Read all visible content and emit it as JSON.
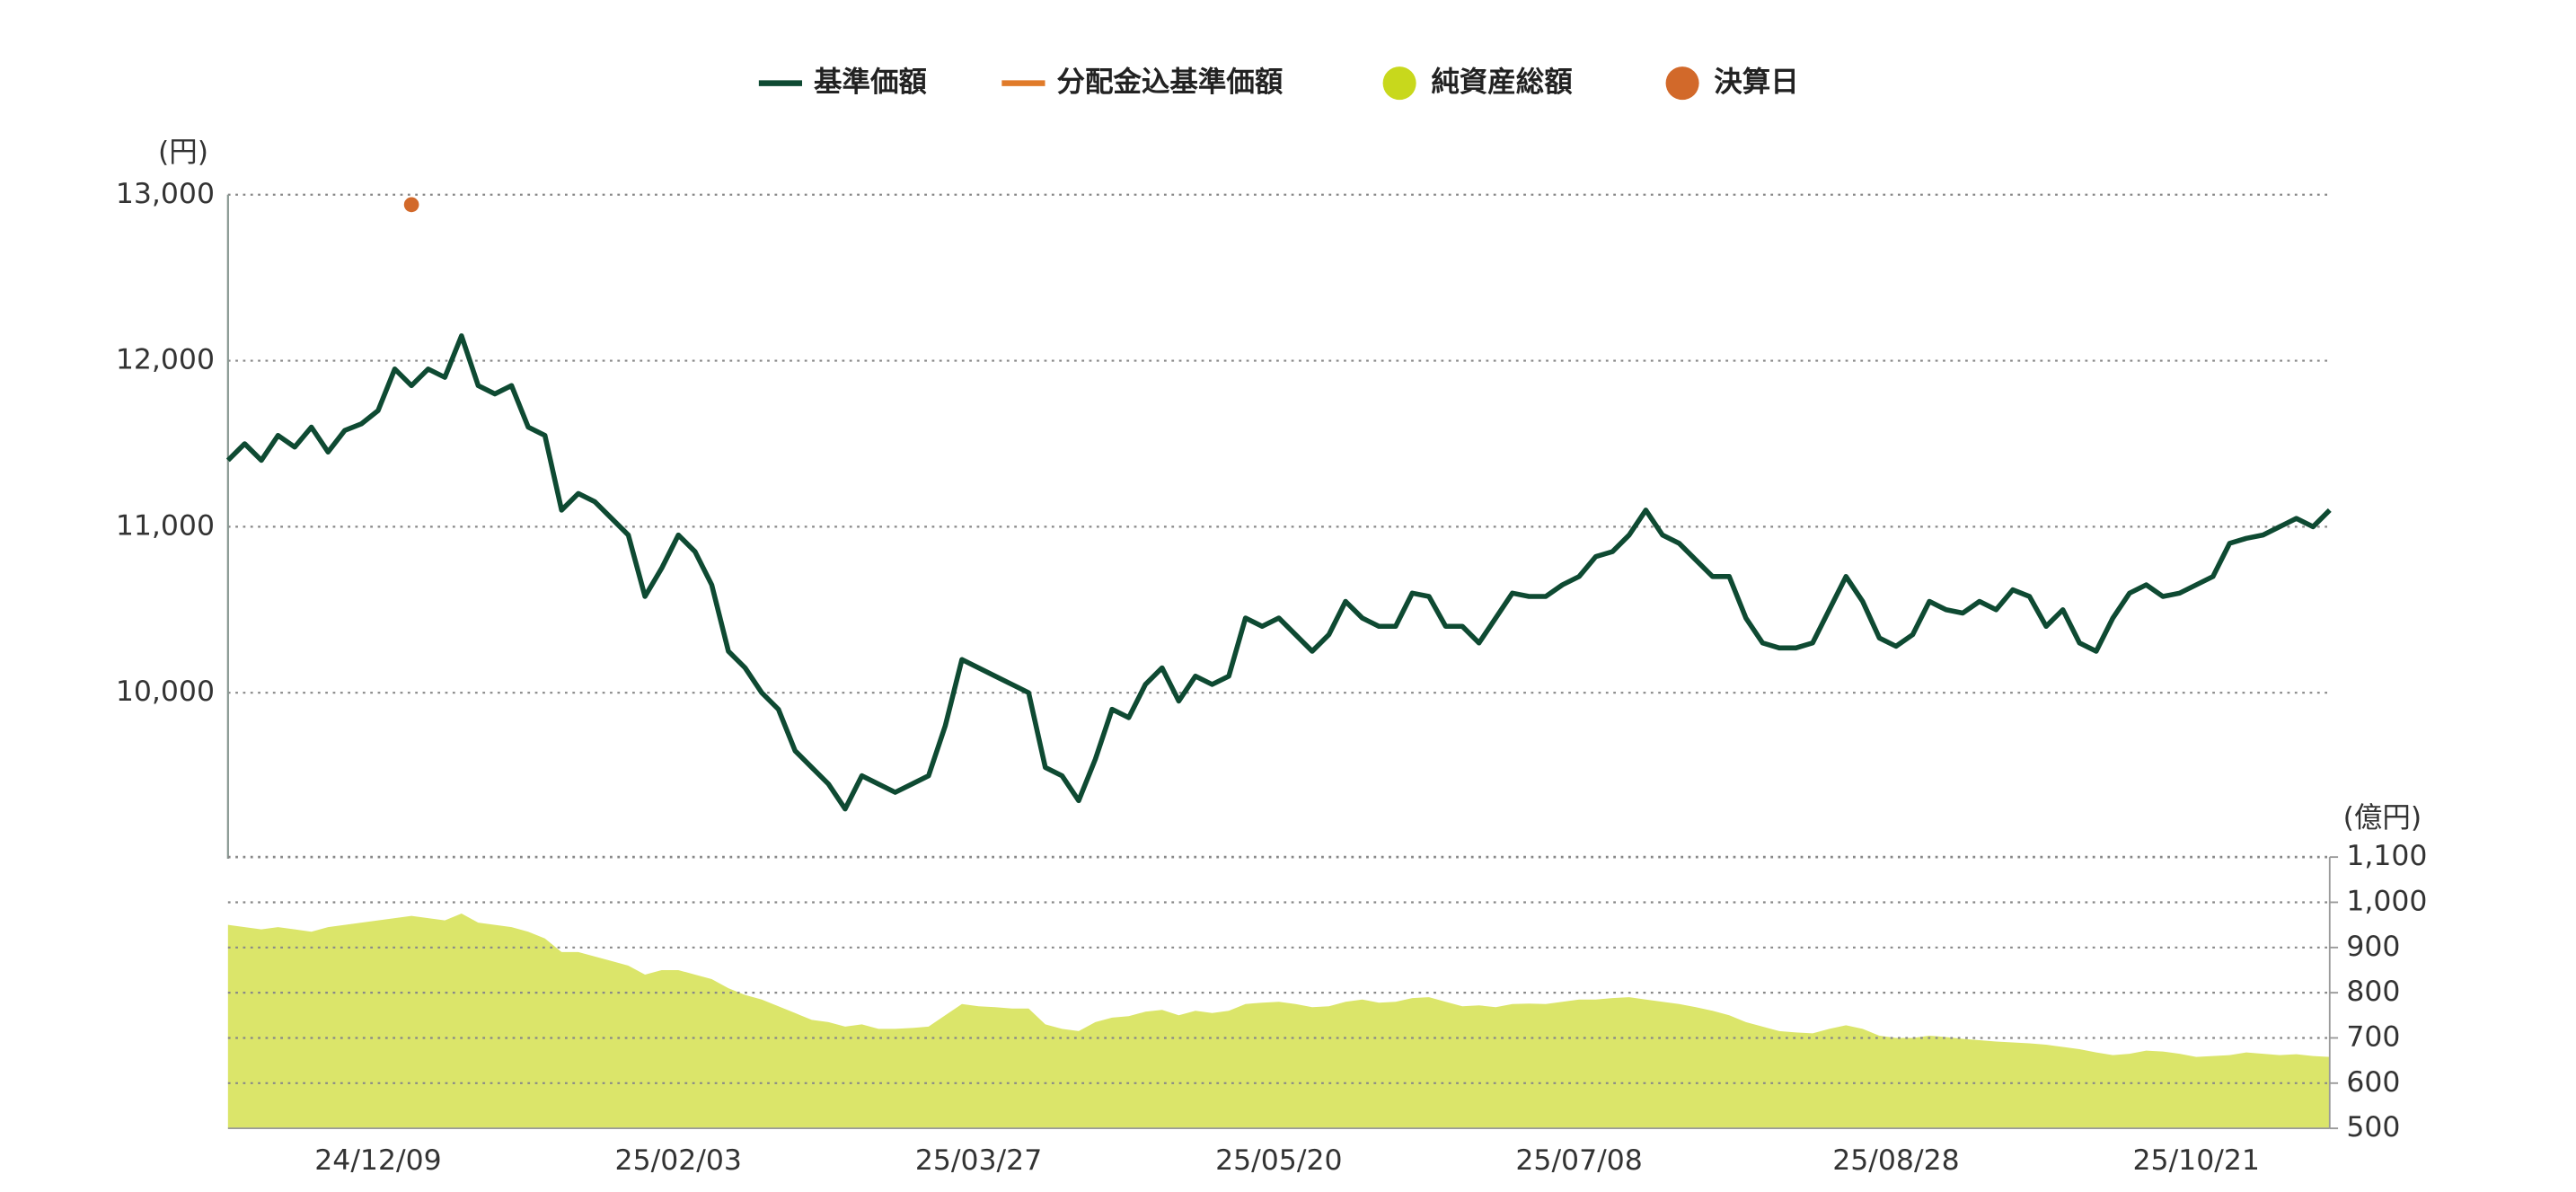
{
  "chart_data": {
    "type": "line",
    "y_unit": "(円)",
    "y2_unit": "(億円)",
    "categories": [
      null,
      null,
      null,
      null,
      null,
      null,
      null,
      null,
      null,
      "24/12/09",
      null,
      null,
      null,
      null,
      null,
      null,
      null,
      null,
      null,
      null,
      null,
      null,
      null,
      null,
      null,
      null,
      null,
      "25/02/03",
      null,
      null,
      null,
      null,
      null,
      null,
      null,
      null,
      null,
      null,
      null,
      null,
      null,
      null,
      null,
      null,
      null,
      "25/03/27",
      null,
      null,
      null,
      null,
      null,
      null,
      null,
      null,
      null,
      null,
      null,
      null,
      null,
      null,
      null,
      null,
      null,
      "25/05/20",
      null,
      null,
      null,
      null,
      null,
      null,
      null,
      null,
      null,
      null,
      null,
      null,
      null,
      null,
      null,
      null,
      null,
      "25/07/08",
      null,
      null,
      null,
      null,
      null,
      null,
      null,
      null,
      null,
      null,
      null,
      null,
      null,
      null,
      null,
      null,
      null,
      null,
      "25/08/28",
      null,
      null,
      null,
      null,
      null,
      null,
      null,
      null,
      null,
      null,
      null,
      null,
      null,
      null,
      null,
      null,
      null,
      "25/10/21",
      null,
      null,
      null,
      null,
      null,
      null,
      null,
      null
    ],
    "series": [
      {
        "name": "基準価額",
        "type": "line",
        "color": "#0e4a32",
        "values": [
          11400,
          11500,
          11400,
          11550,
          11480,
          11600,
          11450,
          11580,
          11620,
          11700,
          11950,
          11850,
          11950,
          11900,
          12150,
          11850,
          11800,
          11850,
          11600,
          11550,
          11100,
          11200,
          11150,
          11050,
          10950,
          10580,
          10750,
          10950,
          10850,
          10650,
          10250,
          10150,
          10000,
          9900,
          9650,
          9550,
          9450,
          9300,
          9500,
          9450,
          9400,
          9450,
          9500,
          9800,
          10200,
          10150,
          10100,
          10050,
          10000,
          9550,
          9500,
          9350,
          9600,
          9900,
          9850,
          10050,
          10150,
          9950,
          10100,
          10050,
          10100,
          10450,
          10400,
          10450,
          10350,
          10250,
          10350,
          10550,
          10450,
          10400,
          10400,
          10600,
          10580,
          10400,
          10400,
          10300,
          10450,
          10600,
          10580,
          10580,
          10650,
          10700,
          10820,
          10850,
          10950,
          11100,
          10950,
          10900,
          10800,
          10700,
          10700,
          10450,
          10300,
          10270,
          10270,
          10300,
          10500,
          10700,
          10550,
          10330,
          10280,
          10350,
          10550,
          10500,
          10480,
          10550,
          10500,
          10620,
          10580,
          10400,
          10500,
          10300,
          10250,
          10450,
          10600,
          10650,
          10580,
          10600,
          10650,
          10700,
          10900,
          10930,
          10950,
          11000,
          11050,
          11000,
          11100
        ]
      },
      {
        "name": "分配金込基準価額",
        "type": "line",
        "color": "#e07b2a"
      },
      {
        "name": "純資産総額",
        "type": "area",
        "axis": "y2",
        "color": "#dbe56a",
        "legend_color": "#c8d81c",
        "values": [
          950,
          945,
          940,
          945,
          940,
          935,
          945,
          950,
          955,
          960,
          965,
          970,
          965,
          960,
          975,
          955,
          950,
          945,
          935,
          920,
          890,
          890,
          880,
          870,
          860,
          840,
          850,
          850,
          840,
          830,
          810,
          795,
          785,
          770,
          755,
          740,
          735,
          725,
          730,
          720,
          720,
          722,
          725,
          750,
          775,
          770,
          768,
          765,
          765,
          730,
          720,
          715,
          735,
          745,
          748,
          758,
          762,
          750,
          760,
          755,
          760,
          775,
          778,
          780,
          775,
          768,
          770,
          780,
          785,
          778,
          780,
          788,
          790,
          780,
          770,
          772,
          768,
          775,
          776,
          775,
          780,
          785,
          785,
          788,
          790,
          785,
          780,
          775,
          768,
          760,
          750,
          735,
          725,
          715,
          712,
          710,
          720,
          728,
          720,
          705,
          700,
          700,
          705,
          702,
          698,
          695,
          692,
          690,
          688,
          685,
          680,
          675,
          668,
          662,
          665,
          672,
          670,
          665,
          658,
          660,
          662,
          668,
          665,
          662,
          664,
          660,
          658
        ]
      },
      {
        "name": "決算日",
        "type": "scatter",
        "color": "#d2692a",
        "values": [
          null,
          null,
          null,
          null,
          null,
          null,
          null,
          null,
          null,
          null,
          null,
          12940,
          null,
          null,
          null,
          null,
          null,
          null,
          null,
          null,
          null,
          null,
          null,
          null,
          null,
          null,
          null,
          null,
          null,
          null,
          null,
          null,
          null,
          null,
          null,
          null,
          null,
          null,
          null,
          null,
          null,
          null,
          null,
          null,
          null,
          null,
          null,
          null,
          null,
          null,
          null,
          null,
          null,
          null,
          null,
          null,
          null,
          null,
          null,
          null,
          null,
          null,
          null,
          null,
          null,
          null,
          null,
          null,
          null,
          null,
          null,
          null,
          null,
          null,
          null,
          null,
          null,
          null,
          null,
          null,
          null,
          null,
          null,
          null,
          null,
          null,
          null,
          null,
          null,
          null,
          null,
          null,
          null,
          null,
          null,
          null,
          null,
          null,
          null,
          null,
          null,
          null,
          null,
          null,
          null,
          null,
          null,
          null,
          null,
          null,
          null,
          null,
          null,
          null,
          null,
          null,
          null,
          null,
          null,
          null,
          null,
          null,
          null,
          null,
          null,
          null,
          null
        ]
      }
    ],
    "ylim": [
      9000,
      13000
    ],
    "yticks": [
      {
        "value": 10000,
        "label": "10,000"
      },
      {
        "value": 11000,
        "label": "11,000"
      },
      {
        "value": 12000,
        "label": "12,000"
      },
      {
        "value": 13000,
        "label": "13,000"
      }
    ],
    "y2lim": [
      500,
      1100
    ],
    "y2ticks": [
      500,
      600,
      700,
      800,
      900,
      {
        "value": 1000,
        "label": "1,000"
      },
      {
        "value": 1100,
        "label": "1,100"
      }
    ],
    "grid": true
  }
}
